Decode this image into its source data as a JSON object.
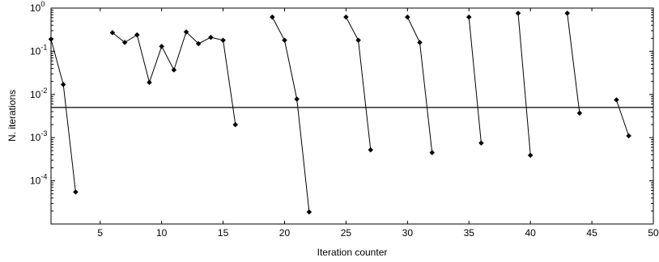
{
  "chart_data": {
    "type": "line",
    "xlabel": "Iteration counter",
    "ylabel": "N. iterations",
    "xlim": [
      1,
      50
    ],
    "ylim": [
      1e-05,
      1
    ],
    "y_scale": "log",
    "grid": false,
    "x_ticks": [
      {
        "value": 5,
        "label": "5"
      },
      {
        "value": 10,
        "label": "10"
      },
      {
        "value": 15,
        "label": "15"
      },
      {
        "value": 20,
        "label": "20"
      },
      {
        "value": 25,
        "label": "25"
      },
      {
        "value": 30,
        "label": "30"
      },
      {
        "value": 35,
        "label": "35"
      },
      {
        "value": 40,
        "label": "40"
      },
      {
        "value": 45,
        "label": "45"
      },
      {
        "value": 50,
        "label": "50"
      }
    ],
    "y_ticks": [
      {
        "value": 1,
        "base": "10",
        "exp": "0"
      },
      {
        "value": 0.1,
        "base": "10",
        "exp": "-1"
      },
      {
        "value": 0.01,
        "base": "10",
        "exp": "-2"
      },
      {
        "value": 0.001,
        "base": "10",
        "exp": "-3"
      },
      {
        "value": 0.0001,
        "base": "10",
        "exp": "-4"
      }
    ],
    "reference_line": {
      "y": 0.005
    },
    "line_color": "#000000",
    "series": [
      {
        "x": [
          1,
          2,
          3
        ],
        "y": [
          0.19,
          0.017,
          5.5e-05
        ]
      },
      {
        "x": [
          6,
          7,
          8,
          9,
          10,
          11,
          12,
          13,
          14,
          15,
          16
        ],
        "y": [
          0.27,
          0.16,
          0.24,
          0.019,
          0.13,
          0.037,
          0.28,
          0.15,
          0.21,
          0.18,
          0.002
        ]
      },
      {
        "x": [
          19,
          20,
          21,
          22
        ],
        "y": [
          0.62,
          0.18,
          0.0078,
          1.9e-05
        ]
      },
      {
        "x": [
          25,
          26,
          27
        ],
        "y": [
          0.62,
          0.18,
          0.00052
        ]
      },
      {
        "x": [
          30,
          31,
          32
        ],
        "y": [
          0.62,
          0.16,
          0.00045
        ]
      },
      {
        "x": [
          35,
          36
        ],
        "y": [
          0.62,
          0.00075
        ]
      },
      {
        "x": [
          39,
          40
        ],
        "y": [
          0.76,
          0.00039
        ]
      },
      {
        "x": [
          43,
          44
        ],
        "y": [
          0.76,
          0.0037
        ]
      },
      {
        "x": [
          47,
          48
        ],
        "y": [
          0.0075,
          0.0011
        ]
      }
    ]
  }
}
